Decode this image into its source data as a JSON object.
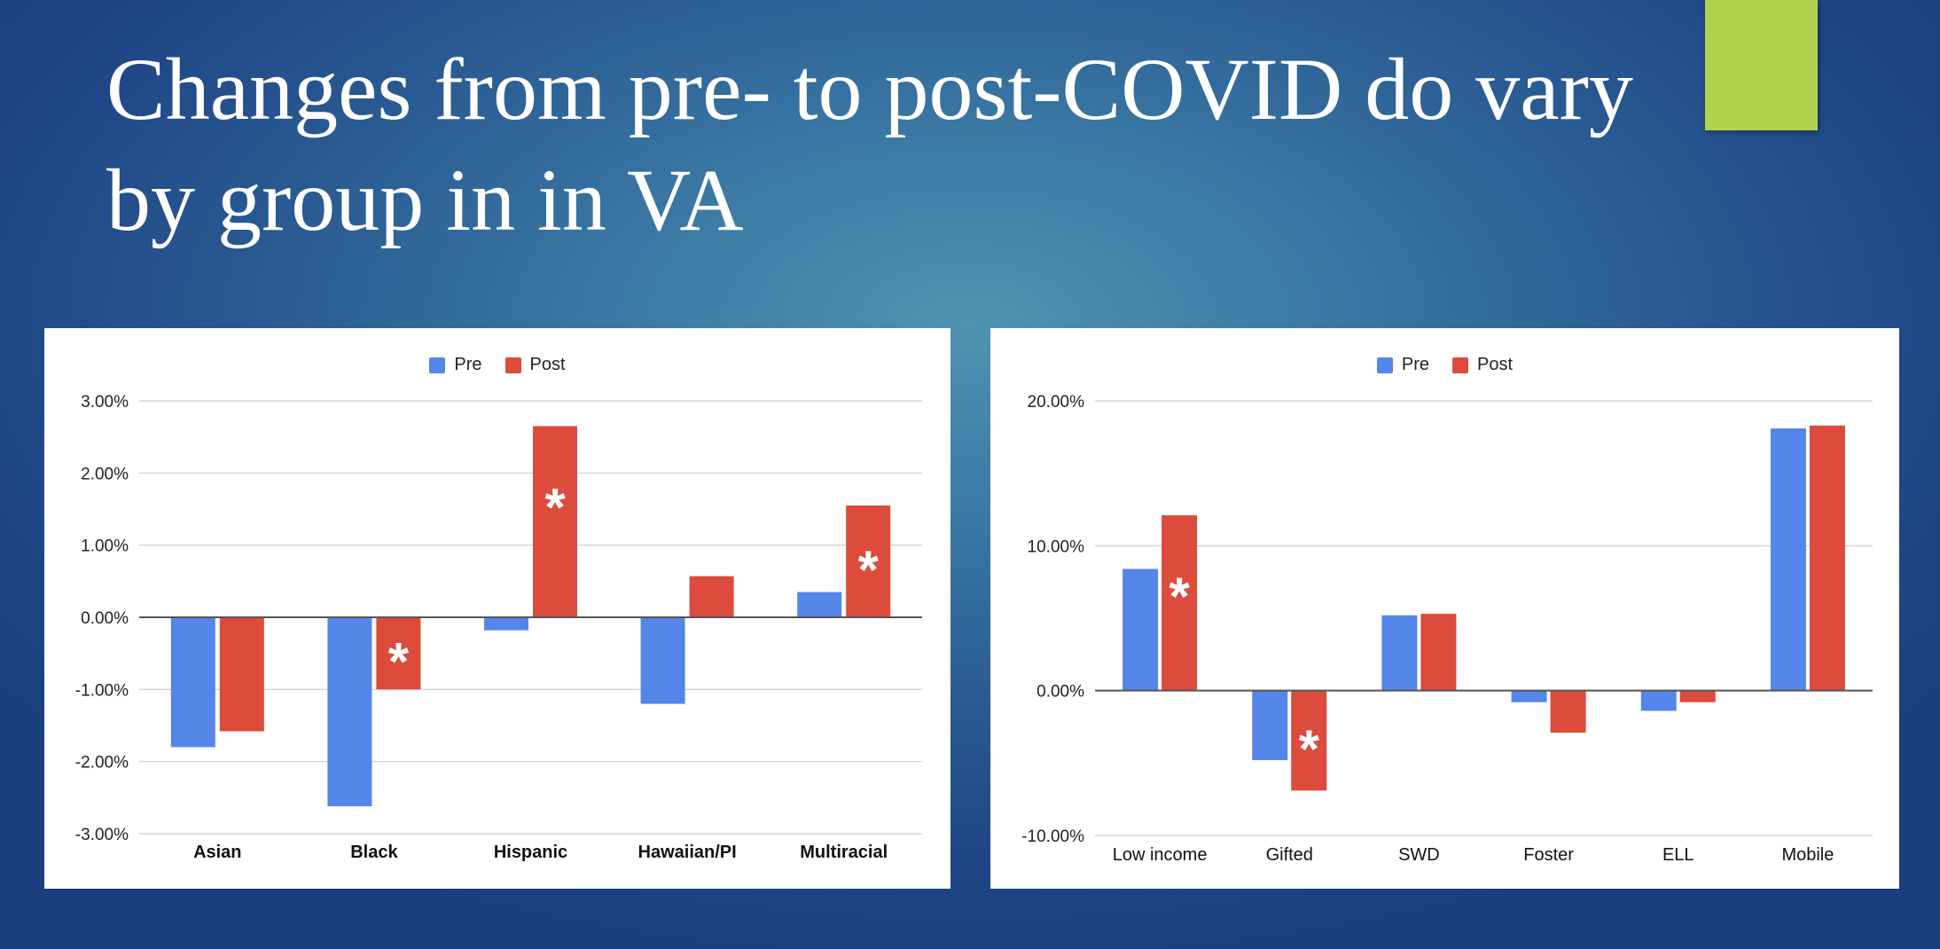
{
  "slide": {
    "title": "Changes from pre- to post-COVID do vary by group in in VA"
  },
  "colors": {
    "pre": "#5486ea",
    "post": "#dc4b3b",
    "accent": "#b2d24e"
  },
  "chart_data": [
    {
      "type": "bar",
      "categories": [
        "Asian",
        "Black",
        "Hispanic",
        "Hawaiian/PI",
        "Multiracial"
      ],
      "series": [
        {
          "name": "Pre",
          "values": [
            -0.018,
            -0.0262,
            -0.0018,
            -0.012,
            0.0035
          ]
        },
        {
          "name": "Post",
          "values": [
            -0.0158,
            -0.01,
            0.0265,
            0.0057,
            0.0155
          ]
        }
      ],
      "significant": [
        {
          "category": "Black",
          "series": "Post",
          "marker": "*"
        },
        {
          "category": "Hispanic",
          "series": "Post",
          "marker": "*"
        },
        {
          "category": "Multiracial",
          "series": "Post",
          "marker": "*"
        }
      ],
      "yticks": [
        0.03,
        0.02,
        0.01,
        0.0,
        -0.01,
        -0.02,
        -0.03
      ],
      "ytick_labels": [
        "3.00%",
        "2.00%",
        "1.00%",
        "0.00%",
        "-1.00%",
        "-2.00%",
        "-3.00%"
      ],
      "ylim": [
        -0.03,
        0.03
      ],
      "category_labels_bold": true,
      "legend": "top-center",
      "grid": true
    },
    {
      "type": "bar",
      "categories": [
        "Low income",
        "Gifted",
        "SWD",
        "Foster",
        "ELL",
        "Mobile"
      ],
      "series": [
        {
          "name": "Pre",
          "values": [
            0.084,
            -0.048,
            0.052,
            -0.008,
            -0.014,
            0.181
          ]
        },
        {
          "name": "Post",
          "values": [
            0.121,
            -0.069,
            0.053,
            -0.029,
            -0.008,
            0.183
          ]
        }
      ],
      "significant": [
        {
          "category": "Low income",
          "series": "Post",
          "marker": "*"
        },
        {
          "category": "Gifted",
          "series": "Post",
          "marker": "*"
        }
      ],
      "yticks": [
        0.2,
        0.1,
        0.0,
        -0.1
      ],
      "ytick_labels": [
        "20.00%",
        "10.00%",
        "0.00%",
        "-10.00%"
      ],
      "ylim": [
        -0.1,
        0.2
      ],
      "category_labels_bold": false,
      "legend": "top-center",
      "grid": true
    }
  ]
}
